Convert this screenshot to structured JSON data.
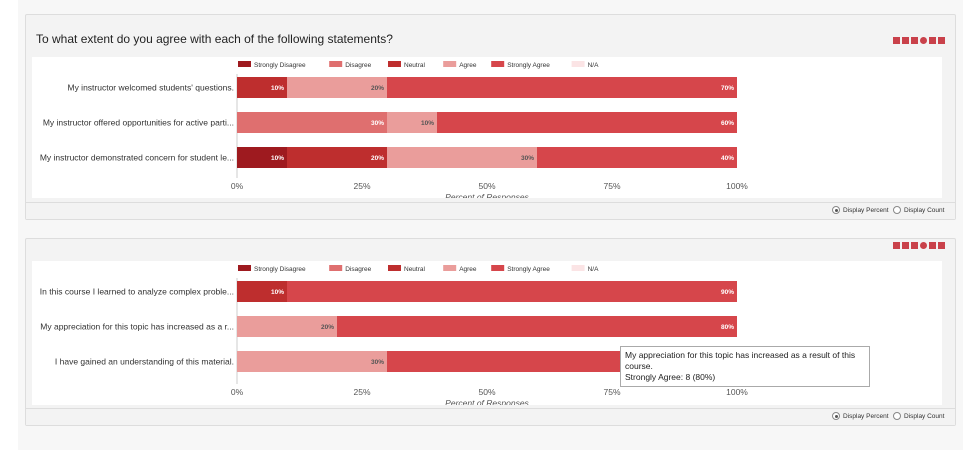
{
  "questions": [
    {
      "title": "To what extent do you agree with each of the following statements?",
      "legend": [
        "Strongly Disagree",
        "Disagree",
        "Neutral",
        "Agree",
        "Strongly Agree",
        "N/A"
      ]
    },
    {
      "title": "",
      "legend": [
        "Strongly Disagree",
        "Disagree",
        "Neutral",
        "Agree",
        "Strongly Agree",
        "N/A"
      ]
    }
  ],
  "colors": {
    "Strongly Disagree": "#9e1a1f",
    "Disagree": "#df6f6f",
    "Neutral": "#be2e2e",
    "Agree": "#ea9d9b",
    "Strongly Agree": "#d6464b",
    "N/A": "#fbe4e5"
  },
  "chart_data": [
    {
      "type": "bar",
      "orientation": "horizontal-stacked",
      "title": "To what extent do you agree with each of the following statements?",
      "xlabel": "Percent of Responses",
      "xlim": [
        0,
        100
      ],
      "xticks": [
        "0%",
        "25%",
        "50%",
        "75%",
        "100%"
      ],
      "categories": [
        "My instructor welcomed students' questions.",
        "My instructor offered opportunities for active parti...",
        "My instructor demonstrated concern for student le..."
      ],
      "series": [
        {
          "name": "Strongly Disagree",
          "values": [
            0,
            0,
            10
          ]
        },
        {
          "name": "Disagree",
          "values": [
            0,
            30,
            0
          ]
        },
        {
          "name": "Neutral",
          "values": [
            10,
            0,
            20
          ]
        },
        {
          "name": "Agree",
          "values": [
            20,
            10,
            30
          ]
        },
        {
          "name": "Strongly Agree",
          "values": [
            70,
            60,
            40
          ]
        },
        {
          "name": "N/A",
          "values": [
            0,
            0,
            0
          ]
        }
      ]
    },
    {
      "type": "bar",
      "orientation": "horizontal-stacked",
      "xlabel": "Percent of Responses",
      "xlim": [
        0,
        100
      ],
      "xticks": [
        "0%",
        "25%",
        "50%",
        "75%",
        "100%"
      ],
      "categories": [
        "In this course I learned to analyze complex proble...",
        "My appreciation for this topic has increased as a r...",
        "I have gained an understanding of this material."
      ],
      "series": [
        {
          "name": "Strongly Disagree",
          "values": [
            0,
            0,
            0
          ]
        },
        {
          "name": "Disagree",
          "values": [
            0,
            0,
            0
          ]
        },
        {
          "name": "Neutral",
          "values": [
            10,
            0,
            0
          ]
        },
        {
          "name": "Agree",
          "values": [
            0,
            20,
            30
          ]
        },
        {
          "name": "Strongly Agree",
          "values": [
            90,
            80,
            70
          ]
        },
        {
          "name": "N/A",
          "values": [
            0,
            0,
            0
          ]
        }
      ]
    }
  ],
  "display_options": {
    "percent_label": "Display Percent",
    "count_label": "Display Count",
    "selected": "percent"
  },
  "tooltip": {
    "title": "My appreciation for this topic has increased as a result of this course.",
    "line": "Strongly Agree: 8 (80%)"
  },
  "toolbar_icons": [
    "stacked-bar-icon",
    "stacked-bar-icon",
    "stacked-bar-icon",
    "pie-chart-icon",
    "bar-chart-icon",
    "table-icon"
  ]
}
